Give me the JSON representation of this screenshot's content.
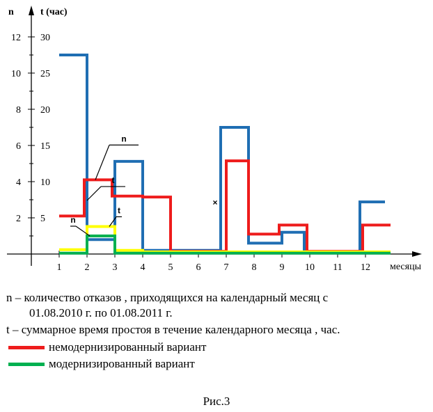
{
  "chart_data": {
    "type": "line",
    "step": true,
    "n_axis_label": "n",
    "t_axis_label": "t (час)",
    "x_axis_label": "месяцы",
    "x_ticks": [
      "1",
      "2",
      "3",
      "4",
      "5",
      "6",
      "7",
      "8",
      "9",
      "10",
      "11",
      "12"
    ],
    "n_ticks": [
      "2",
      "4",
      "6",
      "8",
      "10",
      "12"
    ],
    "t_ticks": [
      "5",
      "10",
      "15",
      "20",
      "25",
      "30"
    ],
    "n_range": [
      0,
      13
    ],
    "t_range": [
      0,
      32.5
    ],
    "series": [
      {
        "key": "t_unmod",
        "color": "#1f6eb3",
        "x": [
          1,
          2,
          2,
          3,
          3,
          4,
          4,
          6.8,
          6.8,
          7.8,
          7.8,
          9,
          9,
          9.8,
          9.8,
          11.8,
          11.8,
          12.7
        ],
        "t": [
          27.5,
          27.5,
          2,
          2,
          12.8,
          12.8,
          0.5,
          0.5,
          17.5,
          17.5,
          1.5,
          1.5,
          3,
          3,
          0.3,
          0.3,
          7.2,
          7.2
        ]
      },
      {
        "key": "n_unmod",
        "color": "#ee1c1c",
        "x": [
          1,
          1.9,
          1.9,
          2.9,
          2.9,
          4,
          4,
          5,
          5,
          7,
          7,
          7.8,
          7.8,
          8.9,
          8.9,
          9.9,
          9.9,
          11.9,
          11.9,
          12.9
        ],
        "n": [
          2.1,
          2.1,
          4.1,
          4.1,
          3.2,
          3.2,
          3.15,
          3.15,
          0.15,
          0.15,
          5.15,
          5.15,
          1.1,
          1.1,
          1.6,
          1.6,
          0.15,
          0.15,
          1.6,
          1.6
        ]
      },
      {
        "key": "t_mod",
        "color": "#ffff00",
        "x": [
          1,
          2,
          2,
          3,
          3,
          4,
          4,
          12.9
        ],
        "t": [
          0.6,
          0.6,
          3.8,
          3.8,
          0.5,
          0.5,
          0.3,
          0.3
        ]
      },
      {
        "key": "n_mod",
        "color": "#00b050",
        "x": [
          1,
          2,
          2,
          3,
          3,
          12.9
        ],
        "n": [
          0.05,
          0.05,
          1,
          1,
          0.05,
          0.05
        ]
      }
    ],
    "annotations": [
      {
        "label": "t",
        "series": "t_unmod",
        "anchor_x": 2,
        "anchor_t": 7.4
      },
      {
        "label": "n",
        "series": "n_unmod",
        "anchor_x": 2.3,
        "anchor_n": 4.1
      },
      {
        "label": "t",
        "series": "t_mod",
        "anchor_x": 2.8,
        "anchor_t": 3.8
      },
      {
        "label": "n",
        "series": "n_mod",
        "anchor_x": 2.1,
        "anchor_n": 1
      },
      {
        "label": "×",
        "series": "",
        "anchor_x": 6.6,
        "anchor_n": 2.7
      }
    ]
  },
  "legend": {
    "n_desc_1": "n – количество отказов , приходящихся на календарный месяц с",
    "n_desc_2": "01.08.2010 г. по 01.08.2011 г.",
    "t_desc": "t – суммарное время простоя в течение календарного месяца , час.",
    "red_label": "немодернизированный вариант",
    "green_label": "модернизированный вариант",
    "red_color": "#ee1c1c",
    "green_color": "#00b050"
  },
  "caption": "Рис.3"
}
